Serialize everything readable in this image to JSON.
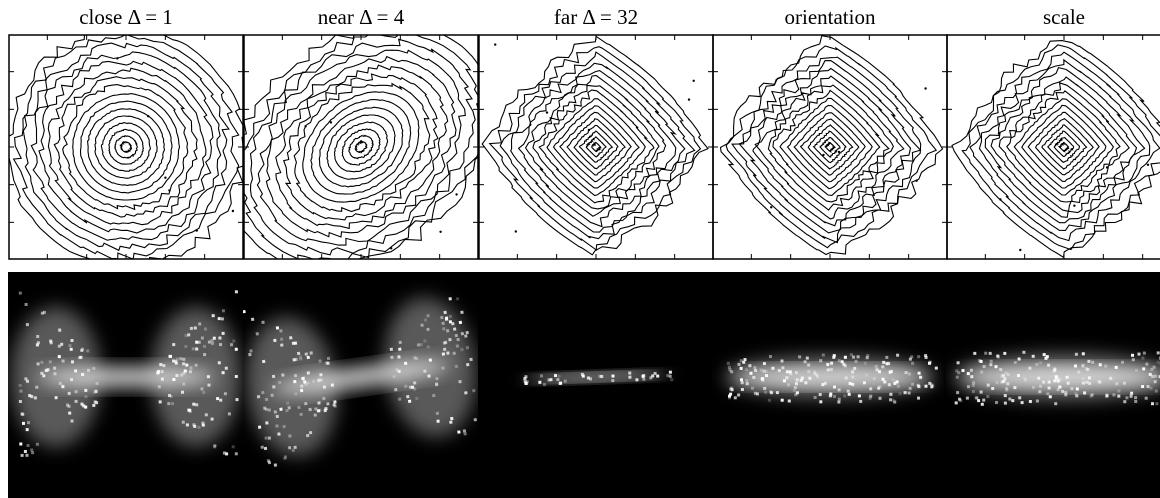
{
  "panels": [
    {
      "title": "close Δ = 1",
      "contour_shape": "circle",
      "contour_rotation_deg": 0,
      "contour_aspect": 1.0,
      "image_shape": "bowtie",
      "image_tilt_deg": 0
    },
    {
      "title": "near Δ = 4",
      "contour_shape": "ellipse",
      "contour_rotation_deg": -40,
      "contour_aspect": 1.3,
      "image_shape": "bowtie-tilted",
      "image_tilt_deg": -8
    },
    {
      "title": "far Δ = 32",
      "contour_shape": "diamond",
      "contour_rotation_deg": 0,
      "contour_aspect": 1.0,
      "image_shape": "thin-line",
      "image_tilt_deg": -2
    },
    {
      "title": "orientation",
      "contour_shape": "diamond",
      "contour_rotation_deg": 0,
      "contour_aspect": 1.0,
      "image_shape": "band",
      "image_tilt_deg": 0
    },
    {
      "title": "scale",
      "contour_shape": "diamond",
      "contour_rotation_deg": 0,
      "contour_aspect": 1.0,
      "image_shape": "band-wide",
      "image_tilt_deg": 0
    }
  ],
  "colors": {
    "line": "#000000",
    "background": "#ffffff",
    "image_background": "#000000",
    "image_glow": "#ffffff"
  }
}
